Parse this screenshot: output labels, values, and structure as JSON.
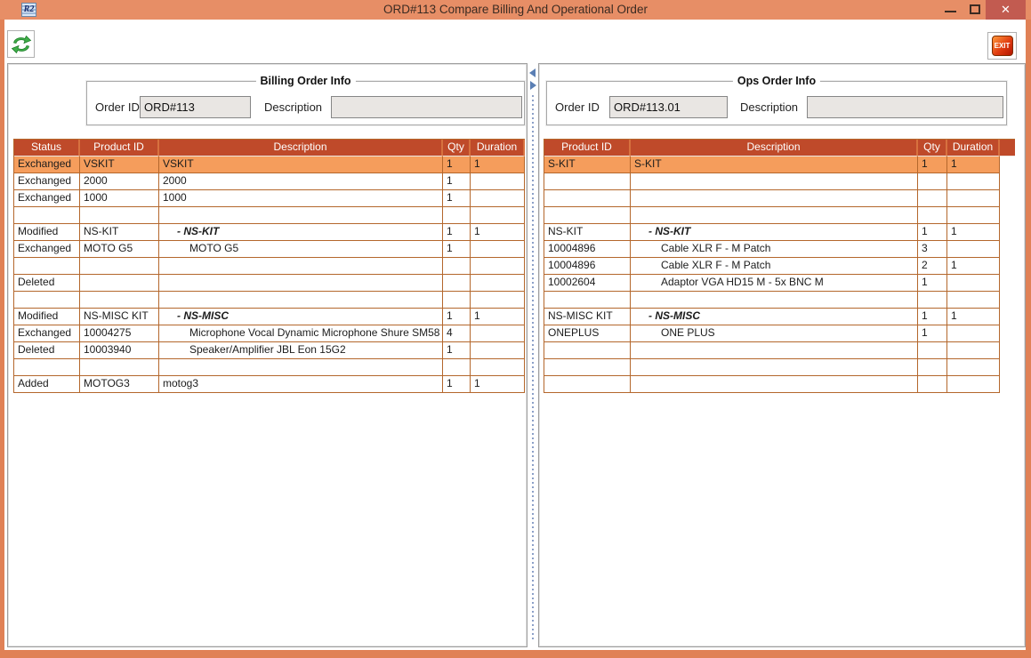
{
  "window": {
    "title": "ORD#113 Compare Billing And Operational Order",
    "app_icon_text": "R2",
    "close_glyph": "✕"
  },
  "toolbar": {
    "exit_label": "EXIT"
  },
  "icons": {
    "app": "r2-logo-icon",
    "refresh": "refresh-recycle-arrows-icon",
    "exit": "exit-red-square-icon",
    "minimize": "minimize-bar-icon",
    "maximize": "maximize-box-icon",
    "close": "close-x-icon",
    "splitter_left": "collapse-left-arrow-icon",
    "splitter_right": "collapse-right-arrow-icon"
  },
  "panels": {
    "billing": {
      "group_title": "Billing Order Info",
      "order_id_label": "Order ID",
      "order_id_value": "ORD#113",
      "description_label": "Description",
      "description_value": ""
    },
    "ops": {
      "group_title": "Ops Order Info",
      "order_id_label": "Order ID",
      "order_id_value": "ORD#113.01",
      "description_label": "Description",
      "description_value": ""
    }
  },
  "billing_table": {
    "columns": [
      "Status",
      "Product ID",
      "Description",
      "Qty",
      "Duration"
    ],
    "rows": [
      {
        "status": "Exchanged",
        "product_id": "VSKIT",
        "description": "VSKIT",
        "qty": "1",
        "duration": "1",
        "desc_style": "plain",
        "selected": true
      },
      {
        "status": "Exchanged",
        "product_id": "2000",
        "description": "2000",
        "qty": "1",
        "duration": "",
        "desc_style": "plain"
      },
      {
        "status": "Exchanged",
        "product_id": "1000",
        "description": "1000",
        "qty": "1",
        "duration": "",
        "desc_style": "plain"
      },
      {
        "status": "",
        "product_id": "",
        "description": "",
        "qty": "",
        "duration": "",
        "desc_style": "plain"
      },
      {
        "status": "Modified",
        "product_id": "NS-KIT",
        "description": "- NS-KIT",
        "qty": "1",
        "duration": "1",
        "desc_style": "group"
      },
      {
        "status": "Exchanged",
        "product_id": "MOTO G5",
        "description": "MOTO G5",
        "qty": "1",
        "duration": "",
        "desc_style": "child"
      },
      {
        "status": "",
        "product_id": "",
        "description": "",
        "qty": "",
        "duration": "",
        "desc_style": "plain"
      },
      {
        "status": "Deleted",
        "product_id": "",
        "description": "",
        "qty": "",
        "duration": "",
        "desc_style": "plain"
      },
      {
        "status": "",
        "product_id": "",
        "description": "",
        "qty": "",
        "duration": "",
        "desc_style": "plain"
      },
      {
        "status": "Modified",
        "product_id": "NS-MISC KIT",
        "description": "- NS-MISC",
        "qty": "1",
        "duration": "1",
        "desc_style": "group"
      },
      {
        "status": "Exchanged",
        "product_id": "10004275",
        "description": "Microphone Vocal Dynamic Microphone Shure SM58",
        "qty": "4",
        "duration": "",
        "desc_style": "child"
      },
      {
        "status": "Deleted",
        "product_id": "10003940",
        "description": "Speaker/Amplifier JBL Eon 15G2",
        "qty": "1",
        "duration": "",
        "desc_style": "child"
      },
      {
        "status": "",
        "product_id": "",
        "description": "",
        "qty": "",
        "duration": "",
        "desc_style": "plain"
      },
      {
        "status": "Added",
        "product_id": "MOTOG3",
        "description": "motog3",
        "qty": "1",
        "duration": "1",
        "desc_style": "plain"
      }
    ]
  },
  "ops_table": {
    "columns": [
      "Product ID",
      "Description",
      "Qty",
      "Duration"
    ],
    "rows": [
      {
        "product_id": "S-KIT",
        "description": "S-KIT",
        "qty": "1",
        "duration": "1",
        "desc_style": "plain",
        "selected": true
      },
      {
        "product_id": "",
        "description": "",
        "qty": "",
        "duration": "",
        "desc_style": "plain"
      },
      {
        "product_id": "",
        "description": "",
        "qty": "",
        "duration": "",
        "desc_style": "plain"
      },
      {
        "product_id": "",
        "description": "",
        "qty": "",
        "duration": "",
        "desc_style": "plain"
      },
      {
        "product_id": "NS-KIT",
        "description": "- NS-KIT",
        "qty": "1",
        "duration": "1",
        "desc_style": "group"
      },
      {
        "product_id": "10004896",
        "description": "Cable XLR F - M Patch",
        "qty": "3",
        "duration": "",
        "desc_style": "child"
      },
      {
        "product_id": "10004896",
        "description": "Cable XLR F - M Patch",
        "qty": "2",
        "duration": "1",
        "desc_style": "child"
      },
      {
        "product_id": "10002604",
        "description": "Adaptor VGA HD15 M - 5x BNC M",
        "qty": "1",
        "duration": "",
        "desc_style": "child"
      },
      {
        "product_id": "",
        "description": "",
        "qty": "",
        "duration": "",
        "desc_style": "plain"
      },
      {
        "product_id": "NS-MISC KIT",
        "description": "- NS-MISC",
        "qty": "1",
        "duration": "1",
        "desc_style": "group"
      },
      {
        "product_id": "ONEPLUS",
        "description": "ONE PLUS",
        "qty": "1",
        "duration": "",
        "desc_style": "child"
      },
      {
        "product_id": "",
        "description": "",
        "qty": "",
        "duration": "",
        "desc_style": "plain"
      },
      {
        "product_id": "",
        "description": "",
        "qty": "",
        "duration": "",
        "desc_style": "plain"
      },
      {
        "product_id": "",
        "description": "",
        "qty": "",
        "duration": "",
        "desc_style": "plain"
      }
    ]
  },
  "colors": {
    "titlebar": "#E78E66",
    "frame": "#E08156",
    "close_button": "#C25B50",
    "table_header_bg": "#BF4A2A",
    "table_header_sep": "#D7713F",
    "table_grid": "#B4672C",
    "selected_row": "#F59D5C",
    "input_bg": "#E9E6E3",
    "panel_border": "#9E9E9E",
    "refresh_green": "#3FAE49",
    "exit_red": "#E03C10",
    "splitter_arrow": "#5B7FB4"
  }
}
